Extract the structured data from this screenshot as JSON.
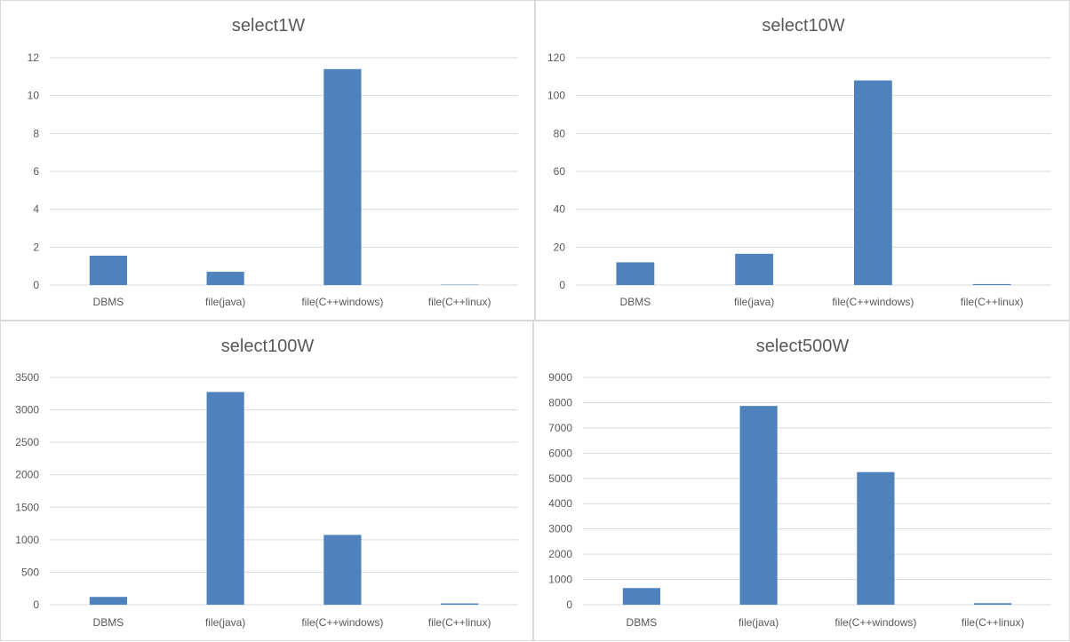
{
  "chart_data": [
    {
      "type": "bar",
      "title": "select1W",
      "categories": [
        "DBMS",
        "file(java)",
        "file(C++windows)",
        "file(C++linux)"
      ],
      "values": [
        1.55,
        0.7,
        11.4,
        0.02
      ],
      "ylim": [
        0,
        12
      ],
      "yticks": [
        "0",
        "2",
        "4",
        "6",
        "8",
        "10",
        "12"
      ],
      "grid": true,
      "bar_color": "#4f81bd"
    },
    {
      "type": "bar",
      "title": "select10W",
      "categories": [
        "DBMS",
        "file(java)",
        "file(C++windows)",
        "file(C++linux)"
      ],
      "values": [
        12,
        16.5,
        108,
        0.5
      ],
      "ylim": [
        0,
        120
      ],
      "yticks": [
        "0",
        "20",
        "40",
        "60",
        "80",
        "100",
        "120"
      ],
      "grid": true,
      "bar_color": "#4f81bd"
    },
    {
      "type": "bar",
      "title": "select100W",
      "categories": [
        "DBMS",
        "file(java)",
        "file(C++windows)",
        "file(C++linux)"
      ],
      "values": [
        120,
        3275,
        1075,
        20
      ],
      "ylim": [
        0,
        3500
      ],
      "yticks": [
        "0",
        "500",
        "1000",
        "1500",
        "2000",
        "2500",
        "3000",
        "3500"
      ],
      "grid": true,
      "bar_color": "#4f81bd"
    },
    {
      "type": "bar",
      "title": "select500W",
      "categories": [
        "DBMS",
        "file(java)",
        "file(C++windows)",
        "file(C++linux)"
      ],
      "values": [
        660,
        7870,
        5250,
        60
      ],
      "ylim": [
        0,
        9000
      ],
      "yticks": [
        "0",
        "1000",
        "2000",
        "3000",
        "4000",
        "5000",
        "6000",
        "7000",
        "8000",
        "9000"
      ],
      "grid": true,
      "bar_color": "#4f81bd"
    }
  ]
}
